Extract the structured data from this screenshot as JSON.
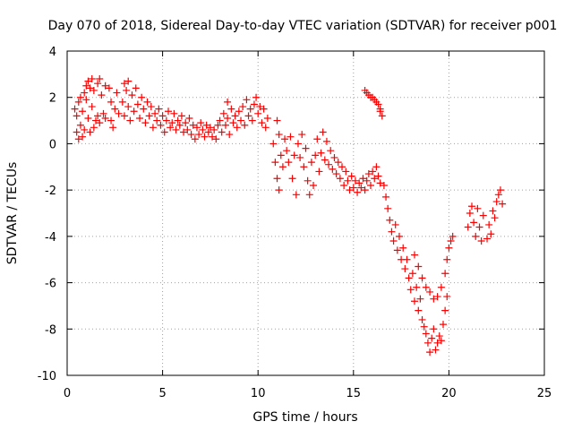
{
  "chart_data": {
    "type": "scatter",
    "title": "Day 070 of 2018, Sidereal Day-to-day VTEC variation (SDTVAR) for receiver p001",
    "xlabel": "GPS time / hours",
    "ylabel": "SDTVAR / TECUs",
    "xlim": [
      0,
      25
    ],
    "ylim": [
      -10,
      4
    ],
    "xticks": [
      0,
      5,
      10,
      15,
      20,
      25
    ],
    "yticks": [
      -10,
      -8,
      -6,
      -4,
      -2,
      0,
      2,
      4
    ],
    "grid": true,
    "marker": "+",
    "series": [
      {
        "name": "SDTVAR",
        "color": "#ff0000",
        "points": [
          [
            0.4,
            1.5
          ],
          [
            0.5,
            1.2
          ],
          [
            0.5,
            0.5
          ],
          [
            0.6,
            0.2
          ],
          [
            0.6,
            1.8
          ],
          [
            0.7,
            2.0
          ],
          [
            0.7,
            0.8
          ],
          [
            0.8,
            1.4
          ],
          [
            0.8,
            0.3
          ],
          [
            0.9,
            2.2
          ],
          [
            0.9,
            0.6
          ],
          [
            1.0,
            2.5
          ],
          [
            1.0,
            1.9
          ],
          [
            1.1,
            2.7
          ],
          [
            1.1,
            1.1
          ],
          [
            1.2,
            2.4
          ],
          [
            1.2,
            0.5
          ],
          [
            1.3,
            2.8
          ],
          [
            1.3,
            1.6
          ],
          [
            1.4,
            0.7
          ],
          [
            1.4,
            2.3
          ],
          [
            1.5,
            1.0
          ],
          [
            1.6,
            2.6
          ],
          [
            1.6,
            1.2
          ],
          [
            1.7,
            2.8
          ],
          [
            1.7,
            0.9
          ],
          [
            1.8,
            2.1
          ],
          [
            1.9,
            1.3
          ],
          [
            2.0,
            2.5
          ],
          [
            2.0,
            1.1
          ],
          [
            2.2,
            2.4
          ],
          [
            2.3,
            1.8
          ],
          [
            2.3,
            1.0
          ],
          [
            2.4,
            0.7
          ],
          [
            2.5,
            1.5
          ],
          [
            2.6,
            2.2
          ],
          [
            2.7,
            1.3
          ],
          [
            2.9,
            1.8
          ],
          [
            3.0,
            2.6
          ],
          [
            3.0,
            1.2
          ],
          [
            3.1,
            2.3
          ],
          [
            3.2,
            1.6
          ],
          [
            3.2,
            2.7
          ],
          [
            3.3,
            1.0
          ],
          [
            3.4,
            2.1
          ],
          [
            3.5,
            1.4
          ],
          [
            3.6,
            2.4
          ],
          [
            3.7,
            1.7
          ],
          [
            3.8,
            1.1
          ],
          [
            3.9,
            2.0
          ],
          [
            4.0,
            1.5
          ],
          [
            4.1,
            0.9
          ],
          [
            4.2,
            1.8
          ],
          [
            4.3,
            1.2
          ],
          [
            4.4,
            1.6
          ],
          [
            4.5,
            0.7
          ],
          [
            4.6,
            1.3
          ],
          [
            4.7,
            1.0
          ],
          [
            4.8,
            1.5
          ],
          [
            4.9,
            0.8
          ],
          [
            5.0,
            1.2
          ],
          [
            5.1,
            0.5
          ],
          [
            5.2,
            1.0
          ],
          [
            5.3,
            1.4
          ],
          [
            5.4,
            0.7
          ],
          [
            5.5,
            0.9
          ],
          [
            5.6,
            1.3
          ],
          [
            5.7,
            0.6
          ],
          [
            5.8,
            1.0
          ],
          [
            5.9,
            0.8
          ],
          [
            6.0,
            1.2
          ],
          [
            6.1,
            0.5
          ],
          [
            6.2,
            0.9
          ],
          [
            6.3,
            0.6
          ],
          [
            6.4,
            1.1
          ],
          [
            6.5,
            0.4
          ],
          [
            6.6,
            0.8
          ],
          [
            6.7,
            0.2
          ],
          [
            6.8,
            0.7
          ],
          [
            6.9,
            0.4
          ],
          [
            7.0,
            0.9
          ],
          [
            7.1,
            0.6
          ],
          [
            7.2,
            0.3
          ],
          [
            7.3,
            0.8
          ],
          [
            7.4,
            0.5
          ],
          [
            7.5,
            0.7
          ],
          [
            7.6,
            0.3
          ],
          [
            7.7,
            0.6
          ],
          [
            7.8,
            0.2
          ],
          [
            7.9,
            0.8
          ],
          [
            8.0,
            1.0
          ],
          [
            8.1,
            0.5
          ],
          [
            8.2,
            1.3
          ],
          [
            8.3,
            0.8
          ],
          [
            8.4,
            1.8
          ],
          [
            8.4,
            1.1
          ],
          [
            8.5,
            0.4
          ],
          [
            8.6,
            1.5
          ],
          [
            8.7,
            0.9
          ],
          [
            8.8,
            1.2
          ],
          [
            8.9,
            0.7
          ],
          [
            9.0,
            1.4
          ],
          [
            9.1,
            1.0
          ],
          [
            9.2,
            1.6
          ],
          [
            9.3,
            0.8
          ],
          [
            9.4,
            1.9
          ],
          [
            9.5,
            1.2
          ],
          [
            9.6,
            1.5
          ],
          [
            9.7,
            1.0
          ],
          [
            9.8,
            1.7
          ],
          [
            9.9,
            2.0
          ],
          [
            10.0,
            1.3
          ],
          [
            10.1,
            1.6
          ],
          [
            10.2,
            0.9
          ],
          [
            10.3,
            1.5
          ],
          [
            10.4,
            0.7
          ],
          [
            10.5,
            1.1
          ],
          [
            10.8,
            0.0
          ],
          [
            10.9,
            -0.8
          ],
          [
            11.0,
            -1.5
          ],
          [
            11.0,
            1.0
          ],
          [
            11.1,
            -2.0
          ],
          [
            11.1,
            0.4
          ],
          [
            11.2,
            -0.5
          ],
          [
            11.3,
            -1.0
          ],
          [
            11.4,
            0.2
          ],
          [
            11.5,
            -0.3
          ],
          [
            11.6,
            -0.8
          ],
          [
            11.7,
            0.3
          ],
          [
            11.8,
            -1.5
          ],
          [
            11.9,
            -0.5
          ],
          [
            12.0,
            -2.2
          ],
          [
            12.1,
            0.0
          ],
          [
            12.2,
            -0.6
          ],
          [
            12.3,
            0.4
          ],
          [
            12.4,
            -1.0
          ],
          [
            12.5,
            -0.2
          ],
          [
            12.6,
            -1.6
          ],
          [
            12.7,
            -2.2
          ],
          [
            12.8,
            -0.8
          ],
          [
            12.9,
            -1.8
          ],
          [
            13.0,
            -0.5
          ],
          [
            13.1,
            0.2
          ],
          [
            13.2,
            -1.2
          ],
          [
            13.3,
            -0.4
          ],
          [
            13.4,
            0.5
          ],
          [
            13.5,
            -0.7
          ],
          [
            13.6,
            0.1
          ],
          [
            13.7,
            -0.9
          ],
          [
            13.8,
            -0.3
          ],
          [
            13.9,
            -1.1
          ],
          [
            14.0,
            -0.6
          ],
          [
            14.1,
            -1.3
          ],
          [
            14.2,
            -0.8
          ],
          [
            14.3,
            -1.5
          ],
          [
            14.4,
            -1.0
          ],
          [
            14.5,
            -1.8
          ],
          [
            14.6,
            -1.2
          ],
          [
            14.7,
            -1.6
          ],
          [
            14.8,
            -2.0
          ],
          [
            14.9,
            -1.4
          ],
          [
            15.0,
            -1.9
          ],
          [
            15.1,
            -1.6
          ],
          [
            15.2,
            -2.1
          ],
          [
            15.3,
            -1.7
          ],
          [
            15.4,
            -1.9
          ],
          [
            15.5,
            -1.5
          ],
          [
            15.6,
            -2.0
          ],
          [
            15.7,
            -1.6
          ],
          [
            15.8,
            -1.3
          ],
          [
            15.9,
            -1.8
          ],
          [
            16.0,
            -1.2
          ],
          [
            16.1,
            -1.5
          ],
          [
            16.2,
            -1.0
          ],
          [
            16.3,
            -1.4
          ],
          [
            16.4,
            -1.7
          ],
          [
            15.6,
            2.3
          ],
          [
            15.7,
            2.2
          ],
          [
            15.8,
            2.1
          ],
          [
            15.9,
            2.0
          ],
          [
            16.0,
            2.0
          ],
          [
            16.1,
            1.9
          ],
          [
            16.2,
            1.8
          ],
          [
            16.3,
            1.7
          ],
          [
            16.4,
            1.5
          ],
          [
            16.5,
            1.2
          ],
          [
            16.4,
            1.4
          ],
          [
            16.6,
            -1.8
          ],
          [
            16.7,
            -2.3
          ],
          [
            16.8,
            -2.8
          ],
          [
            16.9,
            -3.3
          ],
          [
            17.0,
            -3.8
          ],
          [
            17.1,
            -4.2
          ],
          [
            17.2,
            -3.5
          ],
          [
            17.3,
            -4.6
          ],
          [
            17.4,
            -4.0
          ],
          [
            17.5,
            -5.0
          ],
          [
            17.6,
            -4.5
          ],
          [
            17.7,
            -5.4
          ],
          [
            17.8,
            -5.0
          ],
          [
            17.9,
            -5.8
          ],
          [
            18.0,
            -6.3
          ],
          [
            18.1,
            -5.6
          ],
          [
            18.2,
            -6.8
          ],
          [
            18.3,
            -6.2
          ],
          [
            18.4,
            -7.2
          ],
          [
            18.5,
            -6.7
          ],
          [
            18.6,
            -7.6
          ],
          [
            18.7,
            -7.9
          ],
          [
            18.8,
            -8.2
          ],
          [
            18.9,
            -8.6
          ],
          [
            19.0,
            -9.0
          ],
          [
            19.1,
            -8.4
          ],
          [
            19.2,
            -8.0
          ],
          [
            19.3,
            -8.9
          ],
          [
            19.4,
            -8.6
          ],
          [
            19.5,
            -8.3
          ],
          [
            19.6,
            -8.5
          ],
          [
            19.7,
            -7.8
          ],
          [
            19.8,
            -7.2
          ],
          [
            19.9,
            -6.6
          ],
          [
            18.2,
            -4.8
          ],
          [
            18.4,
            -5.3
          ],
          [
            18.6,
            -5.8
          ],
          [
            18.8,
            -6.2
          ],
          [
            19.0,
            -6.4
          ],
          [
            19.2,
            -6.7
          ],
          [
            19.4,
            -6.6
          ],
          [
            19.6,
            -6.2
          ],
          [
            19.8,
            -5.6
          ],
          [
            19.9,
            -5.0
          ],
          [
            20.0,
            -4.5
          ],
          [
            20.1,
            -4.2
          ],
          [
            20.2,
            -4.0
          ],
          [
            21.0,
            -3.6
          ],
          [
            21.1,
            -3.0
          ],
          [
            21.2,
            -2.7
          ],
          [
            21.3,
            -3.4
          ],
          [
            21.4,
            -4.0
          ],
          [
            21.5,
            -2.8
          ],
          [
            21.6,
            -3.6
          ],
          [
            21.7,
            -4.2
          ],
          [
            21.8,
            -3.1
          ],
          [
            22.0,
            -4.1
          ],
          [
            22.1,
            -3.5
          ],
          [
            22.2,
            -3.9
          ],
          [
            22.3,
            -2.9
          ],
          [
            22.4,
            -3.2
          ],
          [
            22.5,
            -2.5
          ],
          [
            22.6,
            -2.2
          ],
          [
            22.7,
            -2.0
          ],
          [
            22.8,
            -2.6
          ]
        ]
      }
    ]
  }
}
